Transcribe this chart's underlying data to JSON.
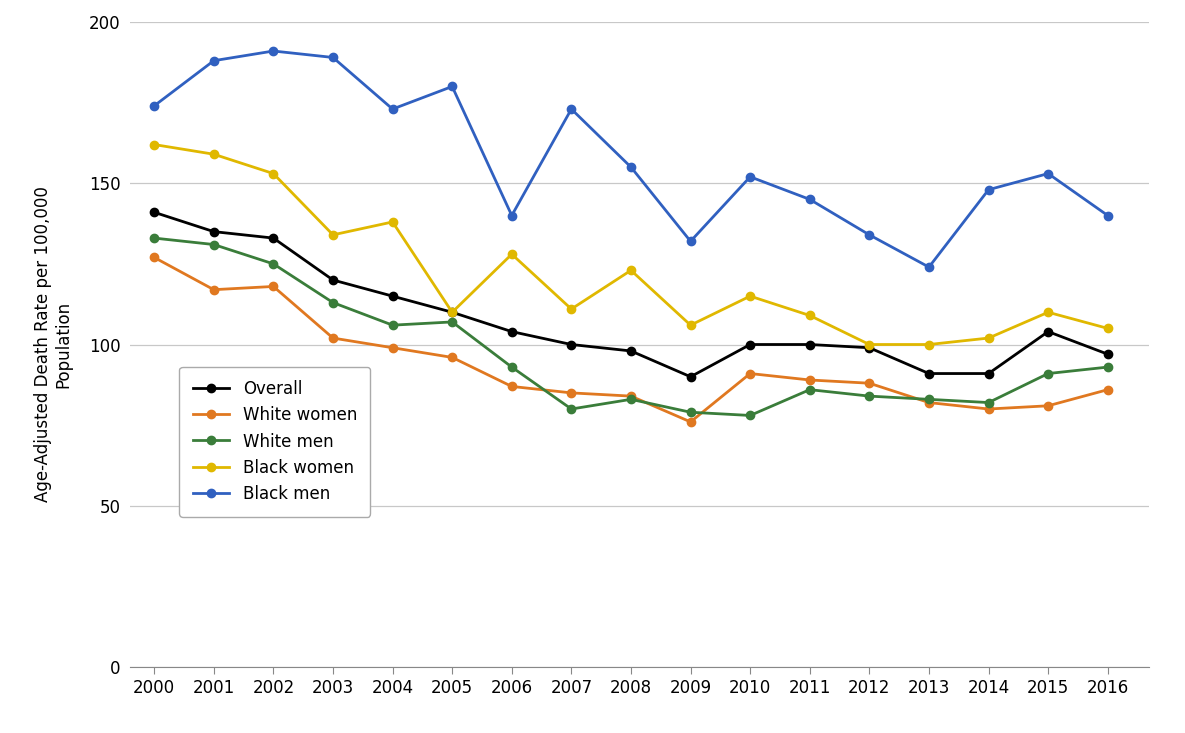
{
  "years": [
    2000,
    2001,
    2002,
    2003,
    2004,
    2005,
    2006,
    2007,
    2008,
    2009,
    2010,
    2011,
    2012,
    2013,
    2014,
    2015,
    2016
  ],
  "overall": [
    141,
    135,
    133,
    120,
    115,
    110,
    104,
    100,
    98,
    90,
    100,
    100,
    99,
    91,
    91,
    104,
    97
  ],
  "white_women": [
    127,
    117,
    118,
    102,
    99,
    96,
    87,
    85,
    84,
    76,
    91,
    89,
    88,
    82,
    80,
    81,
    86
  ],
  "white_men": [
    133,
    131,
    125,
    113,
    106,
    107,
    93,
    80,
    83,
    79,
    78,
    86,
    84,
    83,
    82,
    91,
    93
  ],
  "black_women": [
    162,
    159,
    153,
    134,
    138,
    110,
    128,
    111,
    123,
    106,
    115,
    109,
    100,
    100,
    102,
    110,
    105
  ],
  "black_men": [
    174,
    188,
    191,
    189,
    173,
    180,
    140,
    173,
    155,
    132,
    152,
    145,
    134,
    124,
    148,
    153,
    140
  ],
  "series_colors": {
    "overall": "#000000",
    "white_women": "#e07820",
    "white_men": "#3a7d3a",
    "black_women": "#e0b800",
    "black_men": "#3060c0"
  },
  "series_labels": {
    "overall": "Overall",
    "white_women": "White women",
    "white_men": "White men",
    "black_women": "Black women",
    "black_men": "Black men"
  },
  "ylabel_line1": "Age-Adjusted Death Rate per 100,000",
  "ylabel_line2": "Population",
  "ylim": [
    0,
    200
  ],
  "yticks": [
    0,
    50,
    100,
    150,
    200
  ],
  "background_color": "#ffffff",
  "grid_color": "#c8c8c8",
  "marker": "o",
  "marker_size": 6,
  "line_width": 2.0
}
